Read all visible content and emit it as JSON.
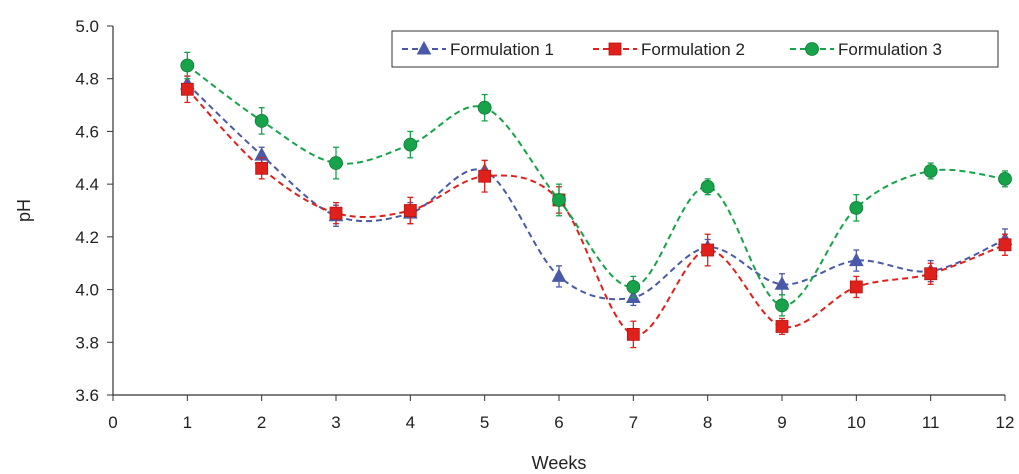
{
  "chart_data": {
    "type": "line",
    "xlabel": "Weeks",
    "ylabel": "pH",
    "xlim": [
      0,
      12
    ],
    "ylim": [
      3.6,
      5.0
    ],
    "x_ticks": [
      "0",
      "1",
      "2",
      "3",
      "4",
      "5",
      "6",
      "7",
      "8",
      "9",
      "10",
      "11",
      "12"
    ],
    "y_ticks": [
      "3.6",
      "3.8",
      "4.0",
      "4.2",
      "4.4",
      "4.6",
      "4.8",
      "5.0"
    ],
    "grid": false,
    "legend_position": "top-right",
    "line_style": "dashed-smooth",
    "series": [
      {
        "name": "Formulation 1",
        "color": "#4a5aa8",
        "marker": "triangle",
        "x": [
          1,
          2,
          3,
          4,
          5,
          6,
          7,
          8,
          9,
          10,
          11,
          12
        ],
        "values": [
          4.78,
          4.51,
          4.28,
          4.29,
          4.45,
          4.05,
          3.97,
          4.16,
          4.02,
          4.11,
          4.07,
          4.19
        ],
        "errors": [
          0.03,
          0.03,
          0.04,
          0.04,
          0.04,
          0.04,
          0.03,
          0.03,
          0.04,
          0.04,
          0.04,
          0.04
        ]
      },
      {
        "name": "Formulation 2",
        "color": "#e0201b",
        "marker": "square",
        "x": [
          1,
          2,
          3,
          4,
          5,
          6,
          7,
          8,
          9,
          10,
          11,
          12
        ],
        "values": [
          4.76,
          4.46,
          4.29,
          4.3,
          4.43,
          4.34,
          3.83,
          4.15,
          3.86,
          4.01,
          4.06,
          4.17
        ],
        "errors": [
          0.05,
          0.04,
          0.04,
          0.05,
          0.06,
          0.05,
          0.05,
          0.06,
          0.03,
          0.04,
          0.04,
          0.04
        ]
      },
      {
        "name": "Formulation 3",
        "color": "#16a34a",
        "marker": "circle",
        "x": [
          1,
          2,
          3,
          4,
          5,
          6,
          7,
          8,
          9,
          10,
          11,
          12
        ],
        "values": [
          4.85,
          4.64,
          4.48,
          4.55,
          4.69,
          4.34,
          4.01,
          4.39,
          3.94,
          4.31,
          4.45,
          4.42
        ],
        "errors": [
          0.05,
          0.05,
          0.06,
          0.05,
          0.05,
          0.06,
          0.04,
          0.03,
          0.04,
          0.05,
          0.03,
          0.03
        ]
      }
    ]
  }
}
